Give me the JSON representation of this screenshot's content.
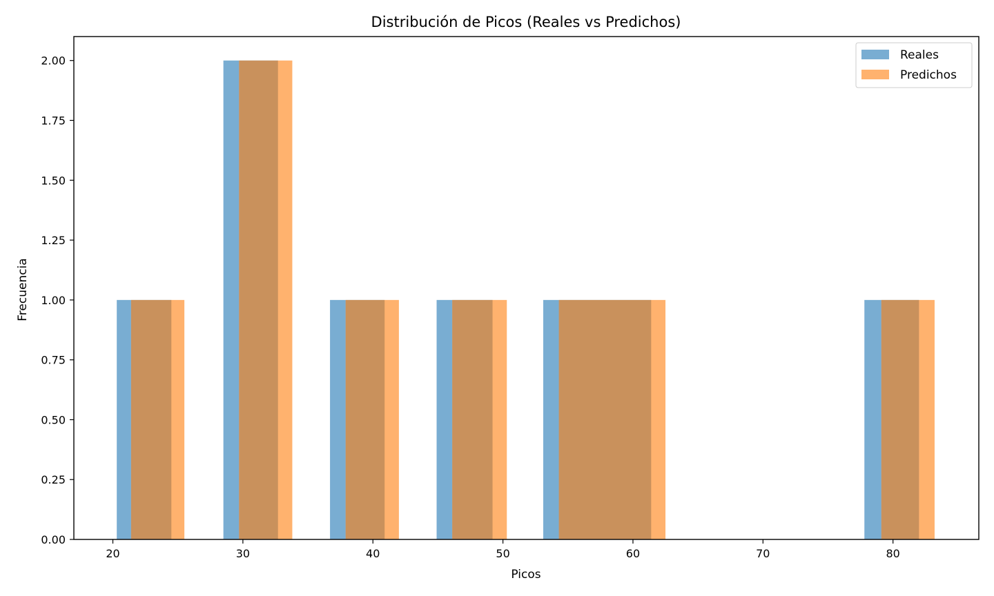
{
  "chart_data": {
    "type": "bar",
    "title": "Distribución de Picos (Reales vs Predichos)",
    "xlabel": "Picos",
    "ylabel": "Frecuencia",
    "xlim": [
      17,
      86.6
    ],
    "ylim": [
      0,
      2.1
    ],
    "xticks": [
      20,
      30,
      40,
      50,
      60,
      70,
      80
    ],
    "yticks": [
      0,
      0.25,
      0.5,
      0.75,
      1.0,
      1.25,
      1.5,
      1.75,
      2.0
    ],
    "ytick_labels": [
      "0.00",
      "0.25",
      "0.50",
      "0.75",
      "1.00",
      "1.25",
      "1.50",
      "1.75",
      "2.00"
    ],
    "legend_position": "top-right",
    "grid": false,
    "series": [
      {
        "name": "Reales",
        "color": "#1f77b4",
        "opacity": 0.6,
        "bins": [
          {
            "x0": 20.3,
            "x1": 21.4,
            "count": 1
          },
          {
            "x0": 21.4,
            "x1": 24.5,
            "count": 1
          },
          {
            "x0": 28.5,
            "x1": 29.7,
            "count": 2
          },
          {
            "x0": 29.7,
            "x1": 32.7,
            "count": 2
          },
          {
            "x0": 36.7,
            "x1": 37.9,
            "count": 1
          },
          {
            "x0": 37.9,
            "x1": 40.9,
            "count": 1
          },
          {
            "x0": 44.9,
            "x1": 46.1,
            "count": 1
          },
          {
            "x0": 46.1,
            "x1": 49.2,
            "count": 1
          },
          {
            "x0": 53.1,
            "x1": 54.3,
            "count": 1
          },
          {
            "x0": 54.3,
            "x1": 61.4,
            "count": 1
          },
          {
            "x0": 77.8,
            "x1": 79.1,
            "count": 1
          },
          {
            "x0": 79.1,
            "x1": 82.0,
            "count": 1
          }
        ]
      },
      {
        "name": "Predichos",
        "color": "#ff7f0e",
        "opacity": 0.6,
        "bins": [
          {
            "x0": 21.4,
            "x1": 25.5,
            "count": 1
          },
          {
            "x0": 29.7,
            "x1": 33.8,
            "count": 2
          },
          {
            "x0": 37.9,
            "x1": 42.0,
            "count": 1
          },
          {
            "x0": 46.1,
            "x1": 50.3,
            "count": 1
          },
          {
            "x0": 54.3,
            "x1": 62.5,
            "count": 1
          },
          {
            "x0": 79.1,
            "x1": 83.2,
            "count": 1
          }
        ]
      }
    ]
  }
}
